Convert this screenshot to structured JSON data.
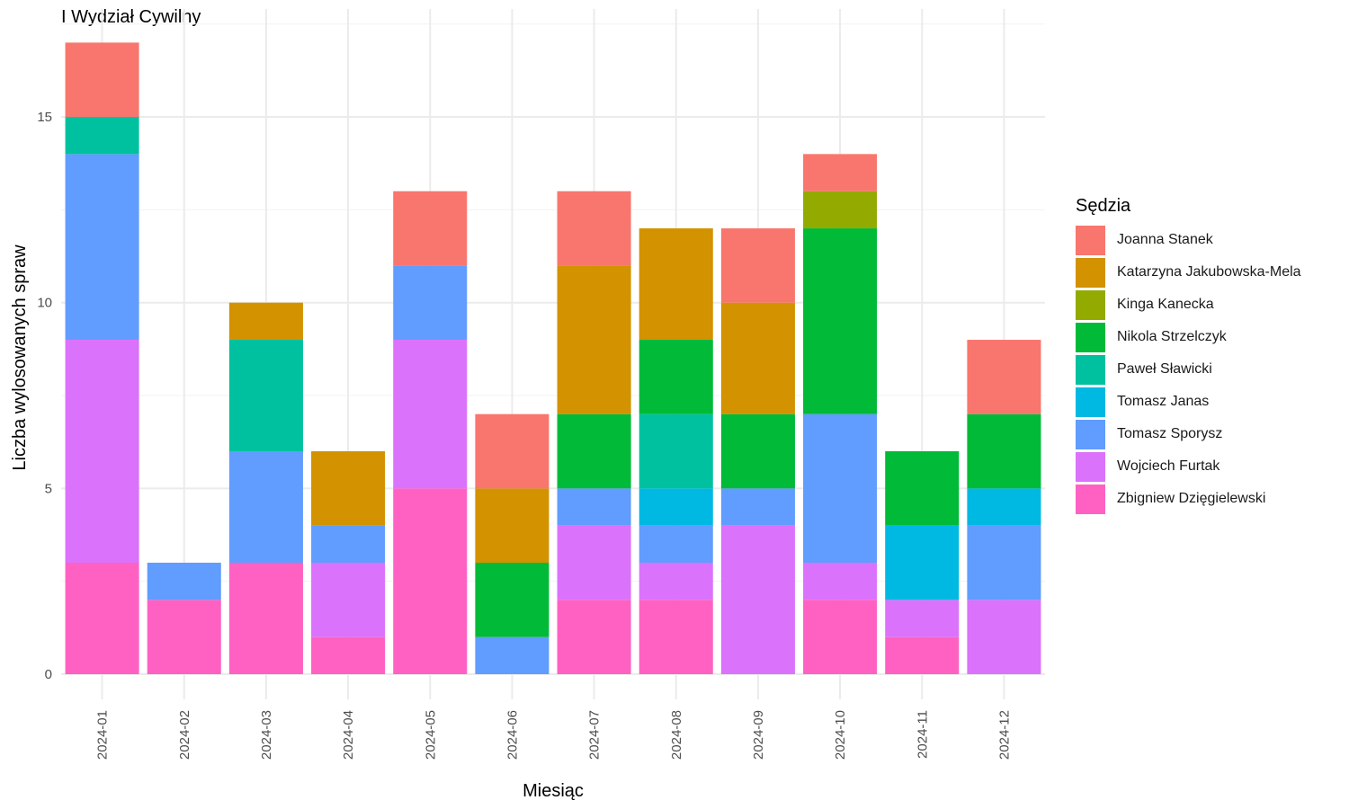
{
  "chart_data": {
    "type": "bar",
    "stacked": true,
    "title": "I Wydział Cywilny",
    "xlabel": "Miesiąc",
    "ylabel": "Liczba wylosowanych spraw",
    "ylim": [
      0,
      17.5
    ],
    "yticks": [
      0,
      5,
      10,
      15
    ],
    "grid": true,
    "legend_title": "Sędzia",
    "legend_position": "right",
    "categories": [
      "2024-01",
      "2024-02",
      "2024-03",
      "2024-04",
      "2024-05",
      "2024-06",
      "2024-07",
      "2024-08",
      "2024-09",
      "2024-10",
      "2024-11",
      "2024-12"
    ],
    "series": [
      {
        "name": "Joanna Stanek",
        "color": "#F8766D",
        "values": [
          2,
          0,
          0,
          0,
          2,
          2,
          2,
          0,
          2,
          1,
          0,
          2
        ]
      },
      {
        "name": "Katarzyna Jakubowska-Mela",
        "color": "#D39200",
        "values": [
          0,
          0,
          1,
          2,
          0,
          2,
          4,
          3,
          3,
          0,
          0,
          0
        ]
      },
      {
        "name": "Kinga Kanecka",
        "color": "#93AA00",
        "values": [
          0,
          0,
          0,
          0,
          0,
          0,
          0,
          0,
          0,
          1,
          0,
          0
        ]
      },
      {
        "name": "Nikola Strzelczyk",
        "color": "#00BA38",
        "values": [
          0,
          0,
          0,
          0,
          0,
          2,
          2,
          2,
          2,
          5,
          2,
          2
        ]
      },
      {
        "name": "Paweł Sławicki",
        "color": "#00C19F",
        "values": [
          1,
          0,
          3,
          0,
          0,
          0,
          0,
          2,
          0,
          0,
          0,
          0
        ]
      },
      {
        "name": "Tomasz Janas",
        "color": "#00B9E3",
        "values": [
          0,
          0,
          0,
          0,
          0,
          0,
          0,
          1,
          0,
          0,
          2,
          1
        ]
      },
      {
        "name": "Tomasz Sporysz",
        "color": "#619CFF",
        "values": [
          5,
          1,
          3,
          1,
          2,
          1,
          1,
          1,
          1,
          4,
          0,
          2
        ]
      },
      {
        "name": "Wojciech Furtak",
        "color": "#DB72FB",
        "values": [
          6,
          0,
          0,
          2,
          4,
          0,
          2,
          1,
          4,
          1,
          1,
          2
        ]
      },
      {
        "name": "Zbigniew Dzięgielewski",
        "color": "#FF61C3",
        "values": [
          3,
          2,
          3,
          1,
          5,
          0,
          2,
          2,
          0,
          2,
          1,
          0
        ]
      }
    ]
  }
}
